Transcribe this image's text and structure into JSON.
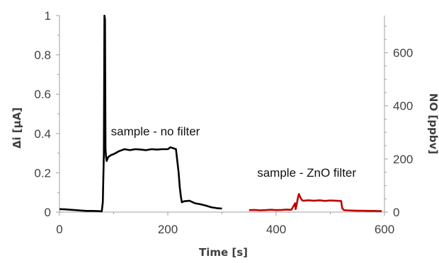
{
  "chart_data": {
    "type": "line",
    "xlabel": "Time [s]",
    "ylabel": "Δi [µA]",
    "y2label": "NO [ppbv]",
    "xlim": [
      0,
      600
    ],
    "ylim": [
      0,
      1
    ],
    "y2lim": [
      0,
      740
    ],
    "x_ticks": [
      0,
      200,
      400,
      600
    ],
    "y_ticks": [
      0,
      0.2,
      0.4,
      0.6,
      0.8,
      1
    ],
    "y_tick_labels": [
      "0",
      "0.2",
      "0.4",
      "0.6",
      "0.8",
      "1"
    ],
    "y2_ticks": [
      0,
      200,
      400,
      600
    ],
    "grid": false,
    "series": [
      {
        "color": "#000000",
        "x": [
          0,
          10,
          20,
          30,
          40,
          50,
          60,
          70,
          78,
          80,
          82,
          83,
          84,
          85,
          86,
          87,
          90,
          95,
          100,
          110,
          120,
          130,
          140,
          150,
          160,
          170,
          180,
          190,
          200,
          205,
          210,
          215,
          220,
          222,
          224,
          226,
          230,
          240,
          250,
          260,
          270,
          280,
          290,
          300
        ],
        "y": [
          0.015,
          0.014,
          0.012,
          0.01,
          0.008,
          0.006,
          0.006,
          0.005,
          0.004,
          0.05,
          0.3,
          1.0,
          0.98,
          0.32,
          0.28,
          0.26,
          0.28,
          0.29,
          0.295,
          0.31,
          0.32,
          0.315,
          0.32,
          0.318,
          0.315,
          0.32,
          0.318,
          0.32,
          0.32,
          0.33,
          0.325,
          0.32,
          0.2,
          0.13,
          0.08,
          0.05,
          0.055,
          0.058,
          0.045,
          0.04,
          0.033,
          0.025,
          0.02,
          0.018
        ]
      },
      {
        "color": "#c00000",
        "x": [
          350,
          360,
          370,
          380,
          390,
          400,
          410,
          420,
          425,
          428,
          430,
          435,
          436,
          438,
          440,
          442,
          444,
          446,
          448,
          450,
          460,
          470,
          480,
          490,
          500,
          510,
          518,
          520,
          522,
          525,
          530,
          540,
          550,
          560,
          570,
          580,
          590,
          595
        ],
        "y": [
          0.01,
          0.011,
          0.009,
          0.01,
          0.012,
          0.01,
          0.011,
          0.013,
          0.012,
          0.012,
          0.02,
          0.045,
          0.015,
          0.04,
          0.07,
          0.092,
          0.078,
          0.068,
          0.06,
          0.058,
          0.06,
          0.058,
          0.06,
          0.057,
          0.059,
          0.058,
          0.057,
          0.056,
          0.02,
          0.01,
          0.009,
          0.008,
          0.007,
          0.007,
          0.006,
          0.006,
          0.005,
          0.005
        ]
      }
    ],
    "annotations": [
      {
        "text": "sample - no filter",
        "x": 95,
        "y": 0.39
      },
      {
        "text": "sample - ZnO filter",
        "x": 365,
        "y": 0.18
      }
    ]
  }
}
